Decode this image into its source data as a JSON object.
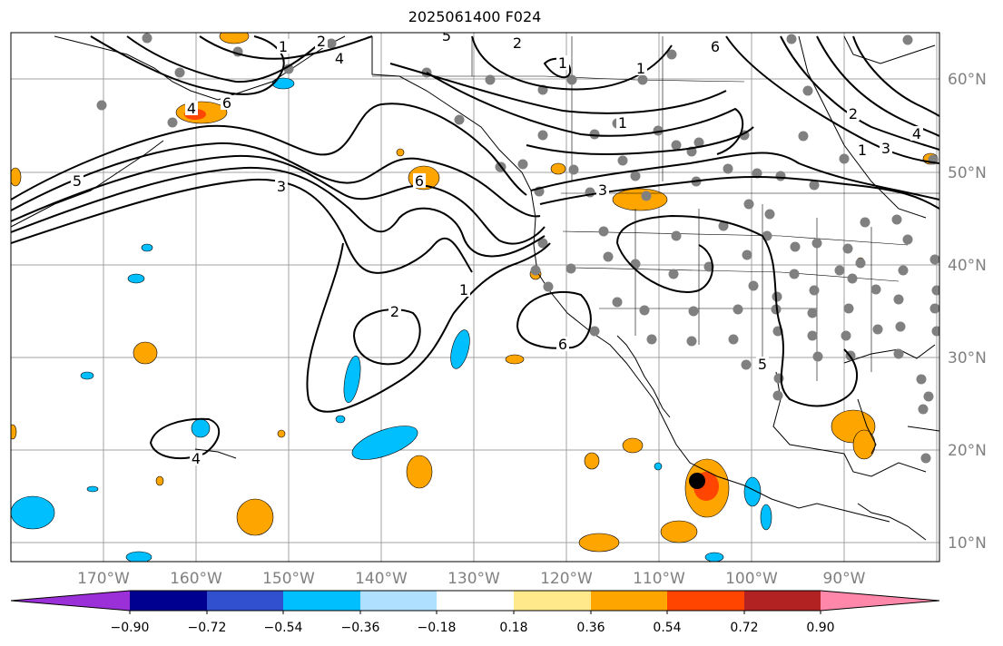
{
  "title": "2025061400 F024",
  "lon_labels": [
    "170°W",
    "160°W",
    "150°W",
    "140°W",
    "130°W",
    "120°W",
    "110°W",
    "100°W",
    "90°W"
  ],
  "lat_labels": [
    "60°N",
    "50°N",
    "40°N",
    "30°N",
    "20°N",
    "10°N"
  ],
  "colorbar": {
    "ticks": [
      "−0.90",
      "−0.72",
      "−0.54",
      "−0.36",
      "−0.18",
      "0.18",
      "0.36",
      "0.54",
      "0.72",
      "0.90"
    ],
    "colors": [
      "#9b30d9",
      "#000090",
      "#3050d0",
      "#00bfff",
      "#b0e0ff",
      "#ffffff",
      "#ffe98a",
      "#ffa500",
      "#ff4500",
      "#b22222",
      "#ff88aa"
    ]
  },
  "contour_labels": [
    "1",
    "2",
    "4",
    "5",
    "6",
    "3",
    "4",
    "6",
    "1",
    "2",
    "1",
    "1",
    "1",
    "2",
    "6",
    "4",
    "5",
    "3",
    "2",
    "1",
    "3",
    "4",
    "6",
    "5"
  ],
  "marker": {
    "name": "storm-center",
    "color": "#000000"
  },
  "colors": {
    "station": "#808080",
    "grid": "#a0a0a0",
    "contour": "#000000"
  }
}
